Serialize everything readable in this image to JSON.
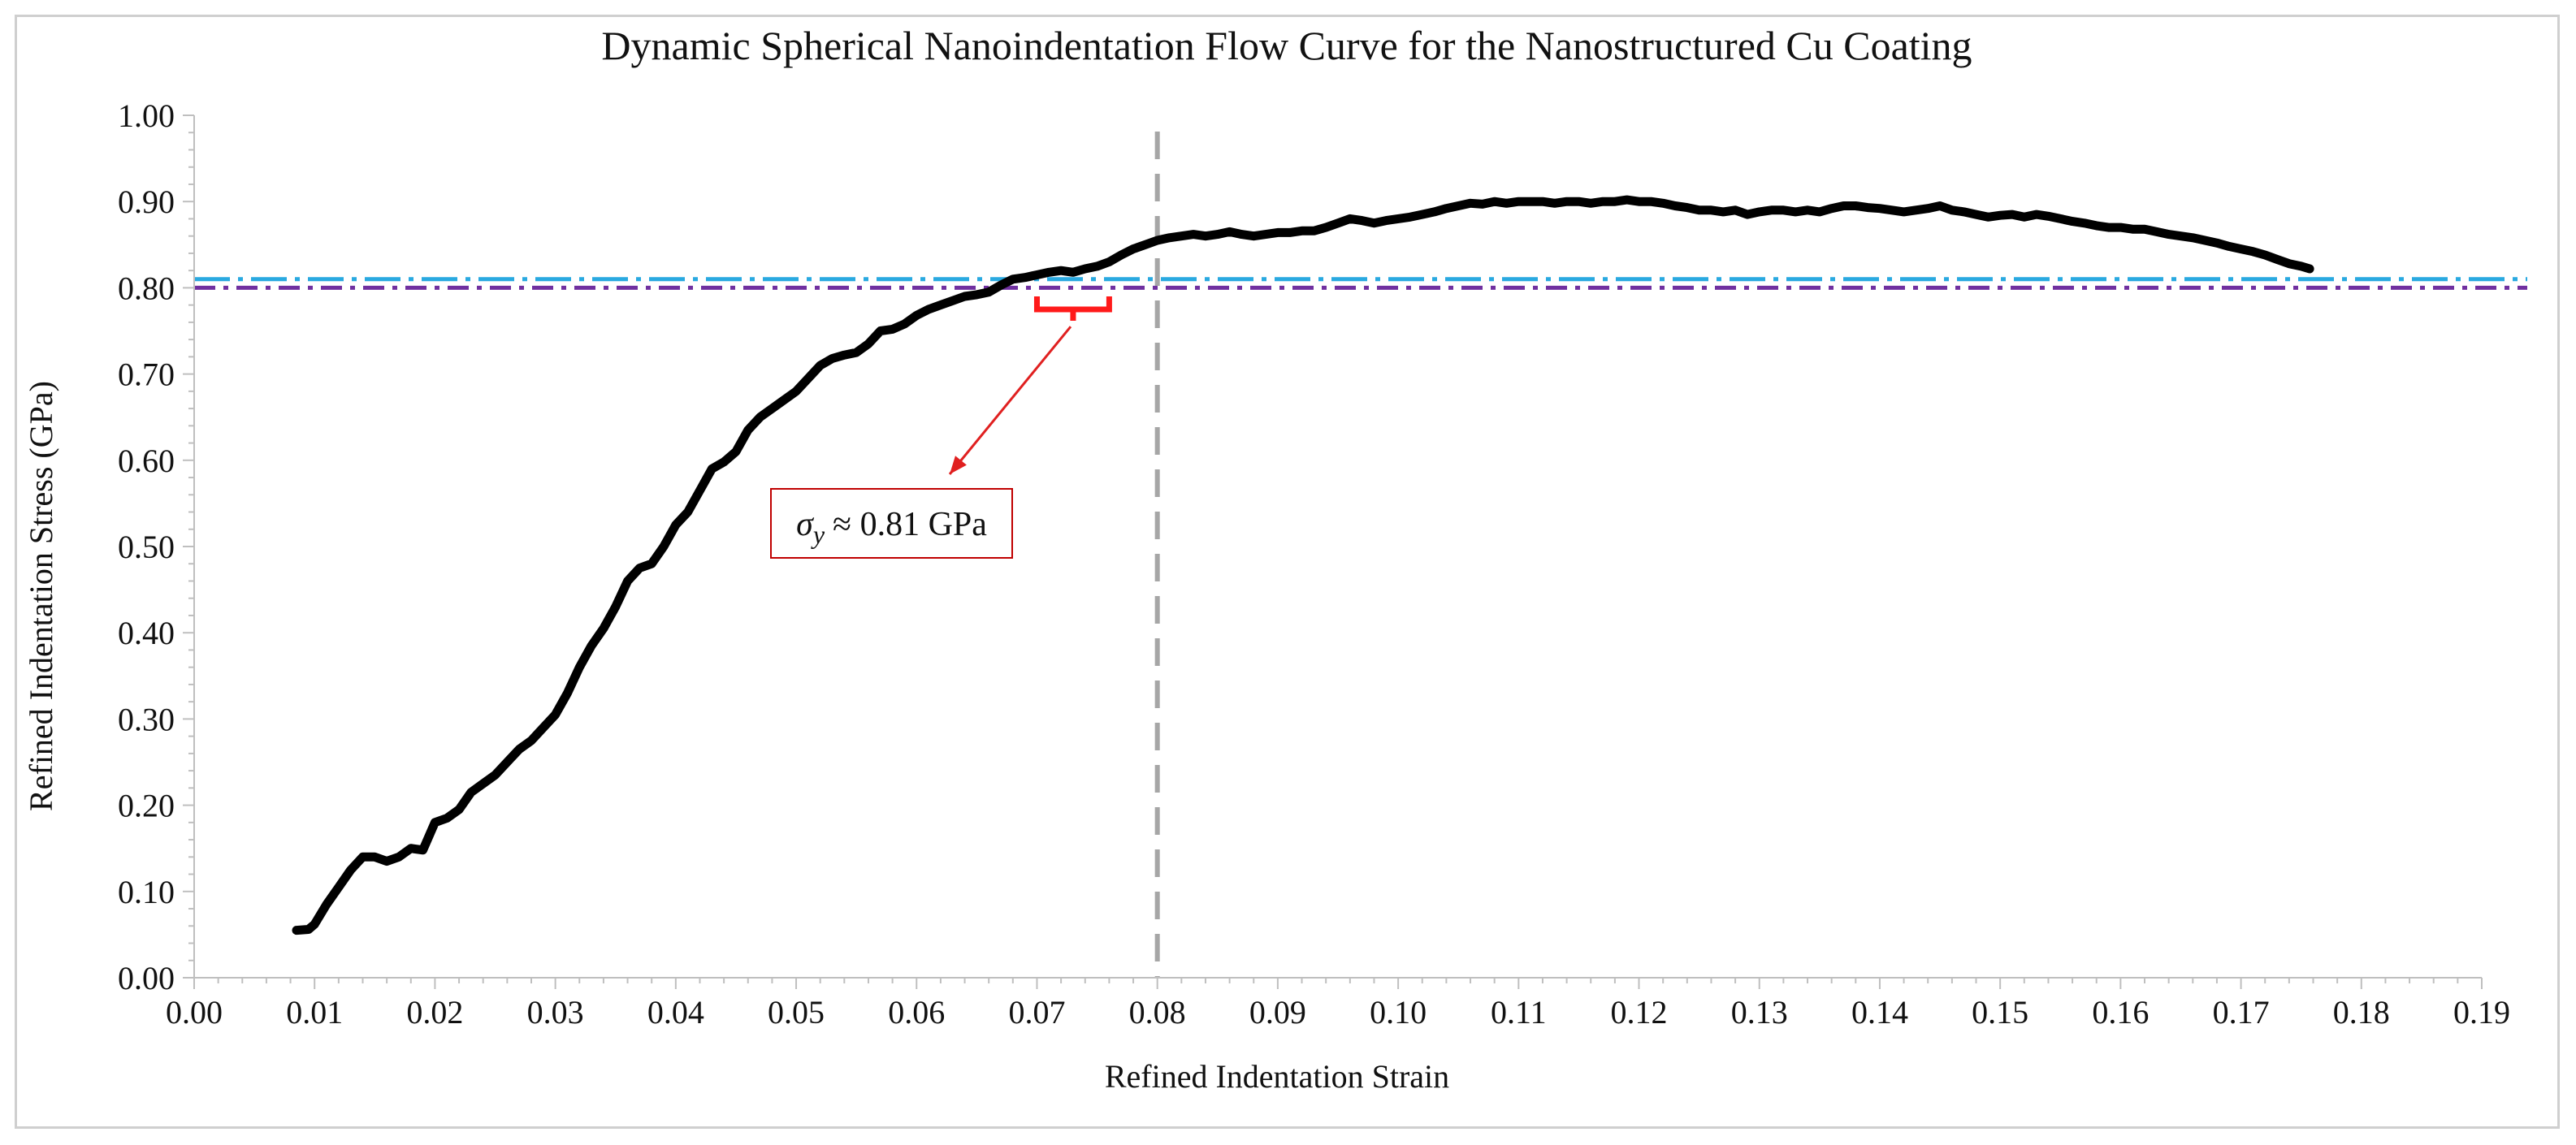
{
  "chart_data": {
    "type": "line",
    "title": "Dynamic Spherical Nanoindentation Flow Curve for the Nanostructured Cu Coating",
    "xlabel": "Refined Indentation Strain",
    "ylabel": "Refined Indentation Stress (GPa)",
    "xlim": [
      0,
      0.19
    ],
    "ylim": [
      0,
      1.0
    ],
    "x_ticks": [
      "0.00",
      "0.01",
      "0.02",
      "0.03",
      "0.04",
      "0.05",
      "0.06",
      "0.07",
      "0.08",
      "0.09",
      "0.10",
      "0.11",
      "0.12",
      "0.13",
      "0.14",
      "0.15",
      "0.16",
      "0.17",
      "0.18",
      "0.19"
    ],
    "y_ticks": [
      "0.00",
      "0.10",
      "0.20",
      "0.30",
      "0.40",
      "0.50",
      "0.60",
      "0.70",
      "0.80",
      "0.90",
      "1.00"
    ],
    "grid": false,
    "series": [
      {
        "name": "Flow curve",
        "color": "#000000",
        "x": [
          0.0085,
          0.0095,
          0.01,
          0.011,
          0.012,
          0.013,
          0.014,
          0.015,
          0.016,
          0.017,
          0.018,
          0.019,
          0.02,
          0.021,
          0.022,
          0.023,
          0.024,
          0.025,
          0.026,
          0.027,
          0.028,
          0.029,
          0.03,
          0.031,
          0.032,
          0.033,
          0.034,
          0.035,
          0.036,
          0.037,
          0.038,
          0.039,
          0.04,
          0.041,
          0.042,
          0.043,
          0.044,
          0.045,
          0.046,
          0.047,
          0.048,
          0.049,
          0.05,
          0.051,
          0.052,
          0.053,
          0.054,
          0.055,
          0.056,
          0.057,
          0.058,
          0.059,
          0.06,
          0.061,
          0.062,
          0.063,
          0.064,
          0.065,
          0.066,
          0.067,
          0.068,
          0.069,
          0.07,
          0.071,
          0.072,
          0.073,
          0.074,
          0.075,
          0.076,
          0.077,
          0.078,
          0.079,
          0.08,
          0.081,
          0.082,
          0.083,
          0.084,
          0.085,
          0.086,
          0.087,
          0.088,
          0.089,
          0.09,
          0.091,
          0.092,
          0.093,
          0.094,
          0.095,
          0.096,
          0.097,
          0.098,
          0.099,
          0.1,
          0.101,
          0.102,
          0.103,
          0.104,
          0.105,
          0.106,
          0.107,
          0.108,
          0.109,
          0.11,
          0.111,
          0.112,
          0.113,
          0.114,
          0.115,
          0.116,
          0.117,
          0.118,
          0.119,
          0.12,
          0.121,
          0.122,
          0.123,
          0.124,
          0.125,
          0.126,
          0.127,
          0.128,
          0.129,
          0.13,
          0.131,
          0.132,
          0.133,
          0.134,
          0.135,
          0.136,
          0.137,
          0.138,
          0.139,
          0.14,
          0.141,
          0.142,
          0.143,
          0.144,
          0.145,
          0.146,
          0.147,
          0.148,
          0.149,
          0.15,
          0.151,
          0.152,
          0.153,
          0.154,
          0.155,
          0.156,
          0.157,
          0.158,
          0.159,
          0.16,
          0.161,
          0.162,
          0.163,
          0.164,
          0.165,
          0.166,
          0.167,
          0.168,
          0.169,
          0.17,
          0.171,
          0.172,
          0.173,
          0.174,
          0.175,
          0.1757
        ],
        "y": [
          0.055,
          0.056,
          0.062,
          0.085,
          0.105,
          0.125,
          0.14,
          0.14,
          0.135,
          0.14,
          0.15,
          0.148,
          0.18,
          0.185,
          0.195,
          0.215,
          0.225,
          0.235,
          0.25,
          0.265,
          0.275,
          0.29,
          0.305,
          0.33,
          0.36,
          0.385,
          0.405,
          0.43,
          0.46,
          0.475,
          0.48,
          0.5,
          0.525,
          0.54,
          0.565,
          0.59,
          0.598,
          0.61,
          0.635,
          0.65,
          0.66,
          0.67,
          0.68,
          0.695,
          0.71,
          0.718,
          0.722,
          0.725,
          0.735,
          0.75,
          0.752,
          0.758,
          0.768,
          0.775,
          0.78,
          0.785,
          0.79,
          0.792,
          0.795,
          0.803,
          0.81,
          0.812,
          0.815,
          0.818,
          0.82,
          0.818,
          0.822,
          0.825,
          0.83,
          0.838,
          0.845,
          0.85,
          0.855,
          0.858,
          0.86,
          0.862,
          0.86,
          0.862,
          0.865,
          0.862,
          0.86,
          0.862,
          0.864,
          0.864,
          0.866,
          0.866,
          0.87,
          0.875,
          0.88,
          0.878,
          0.875,
          0.878,
          0.88,
          0.882,
          0.885,
          0.888,
          0.892,
          0.895,
          0.898,
          0.897,
          0.9,
          0.898,
          0.9,
          0.9,
          0.9,
          0.898,
          0.9,
          0.9,
          0.898,
          0.9,
          0.9,
          0.902,
          0.9,
          0.9,
          0.898,
          0.895,
          0.893,
          0.89,
          0.89,
          0.888,
          0.89,
          0.885,
          0.888,
          0.89,
          0.89,
          0.888,
          0.89,
          0.888,
          0.892,
          0.895,
          0.895,
          0.893,
          0.892,
          0.89,
          0.888,
          0.89,
          0.892,
          0.895,
          0.89,
          0.888,
          0.885,
          0.882,
          0.884,
          0.885,
          0.882,
          0.885,
          0.883,
          0.88,
          0.877,
          0.875,
          0.872,
          0.87,
          0.87,
          0.868,
          0.868,
          0.865,
          0.862,
          0.86,
          0.858,
          0.855,
          0.852,
          0.848,
          0.845,
          0.842,
          0.838,
          0.833,
          0.828,
          0.825,
          0.822
        ]
      }
    ],
    "reference_lines": [
      {
        "name": "yield-0.81-line",
        "orientation": "horizontal",
        "value": 0.81,
        "color": "#29a9e0",
        "style": "long-dash-dot"
      },
      {
        "name": "yield-0.80-line",
        "orientation": "horizontal",
        "value": 0.8,
        "color": "#7030a0",
        "style": "dash-dot"
      },
      {
        "name": "strain-0.08-line",
        "orientation": "vertical",
        "value": 0.08,
        "color": "#a6a6a6",
        "style": "dashed"
      }
    ],
    "annotation": {
      "text_symbol": "σ",
      "text_subscript": "y",
      "text_value": "≈ 0.81 GPa",
      "bracket_x_range": [
        0.07,
        0.076
      ],
      "bracket_y": 0.775,
      "arrow_target_x": 0.0728,
      "arrow_target_y": 0.755,
      "box_color": "#c00000",
      "arrow_color": "#e02020"
    }
  }
}
